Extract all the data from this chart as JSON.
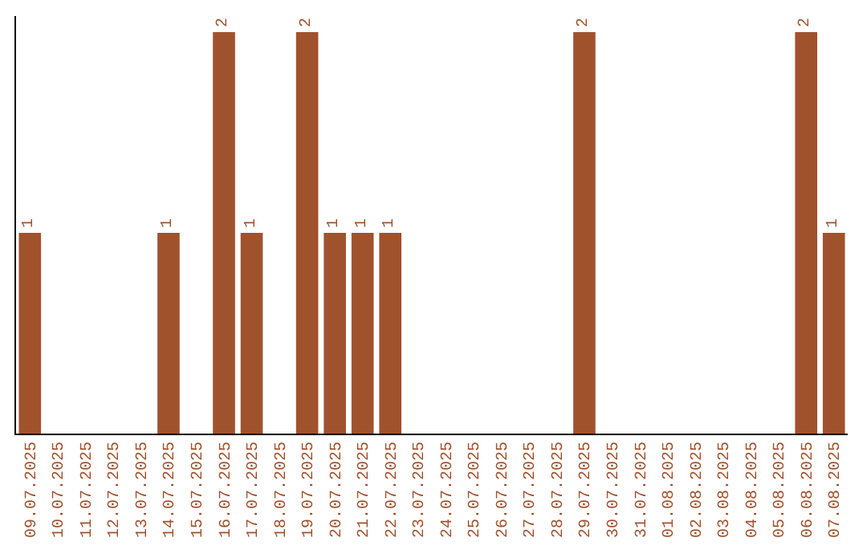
{
  "chart_data": {
    "type": "bar",
    "categories": [
      "09.07.2025",
      "10.07.2025",
      "11.07.2025",
      "12.07.2025",
      "13.07.2025",
      "14.07.2025",
      "15.07.2025",
      "16.07.2025",
      "17.07.2025",
      "18.07.2025",
      "19.07.2025",
      "20.07.2025",
      "21.07.2025",
      "22.07.2025",
      "23.07.2025",
      "24.07.2025",
      "25.07.2025",
      "26.07.2025",
      "27.07.2025",
      "28.07.2025",
      "29.07.2025",
      "30.07.2025",
      "31.07.2025",
      "01.08.2025",
      "02.08.2025",
      "03.08.2025",
      "04.08.2025",
      "05.08.2025",
      "06.08.2025",
      "07.08.2025"
    ],
    "values": [
      1,
      0,
      0,
      0,
      0,
      1,
      0,
      2,
      1,
      0,
      2,
      1,
      1,
      1,
      0,
      0,
      0,
      0,
      0,
      0,
      2,
      0,
      0,
      0,
      0,
      0,
      0,
      0,
      2,
      1
    ],
    "value_labels": [
      "1",
      null,
      null,
      null,
      null,
      "1",
      null,
      "2",
      "1",
      null,
      "2",
      "1",
      "1",
      "1",
      null,
      null,
      null,
      null,
      null,
      null,
      "2",
      null,
      null,
      null,
      null,
      null,
      null,
      null,
      "2",
      "1"
    ],
    "color": "#a0522d",
    "ylim": [
      0,
      2.08
    ],
    "tick_labels": "x",
    "grid": false
  }
}
